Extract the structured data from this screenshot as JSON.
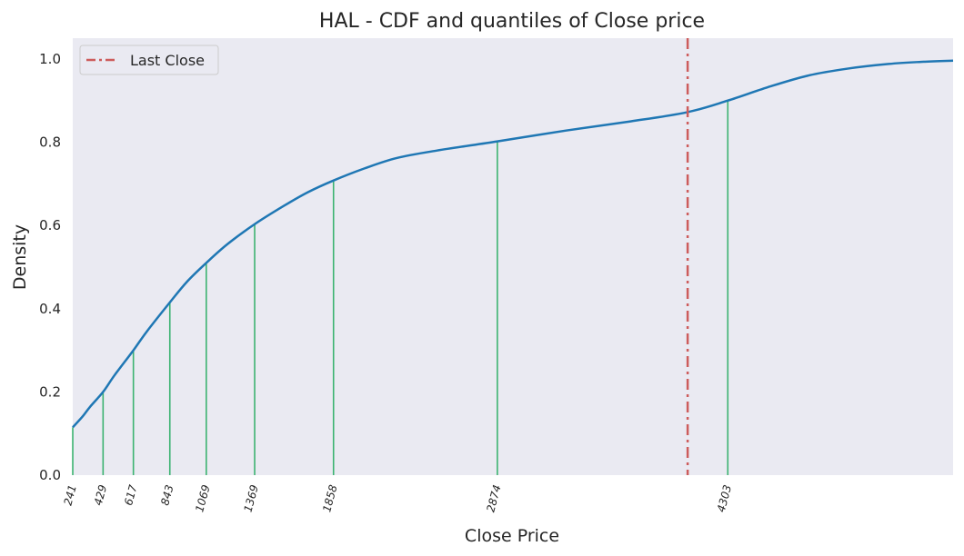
{
  "chart_data": {
    "type": "line",
    "title": "HAL - CDF and quantiles of Close price",
    "xlabel": "Close Price",
    "ylabel": "Density",
    "xlim": [
      241,
      5700
    ],
    "ylim": [
      0,
      1.05
    ],
    "yticks": [
      0.0,
      0.2,
      0.4,
      0.6,
      0.8,
      1.0
    ],
    "ytick_labels": [
      "0.0",
      "0.2",
      "0.4",
      "0.6",
      "0.8",
      "1.0"
    ],
    "grid": false,
    "legend_position": "top-left",
    "series": [
      {
        "name": "",
        "color": "#1f77b4",
        "x": [
          241,
          300,
          350,
          429,
          500,
          617,
          700,
          843,
          950,
          1069,
          1200,
          1369,
          1550,
          1700,
          1858,
          2050,
          2250,
          2500,
          2874,
          3300,
          3700,
          4050,
          4303,
          4550,
          4800,
          5050,
          5300,
          5500,
          5700
        ],
        "y": [
          0.115,
          0.14,
          0.165,
          0.2,
          0.24,
          0.3,
          0.345,
          0.415,
          0.465,
          0.51,
          0.555,
          0.603,
          0.647,
          0.68,
          0.708,
          0.737,
          0.762,
          0.78,
          0.802,
          0.828,
          0.85,
          0.872,
          0.9,
          0.932,
          0.96,
          0.977,
          0.988,
          0.993,
          0.996
        ]
      }
    ],
    "quantiles": {
      "name": "",
      "color": "#3cb371",
      "labels": [
        "241",
        "429",
        "617",
        "843",
        "1069",
        "1369",
        "1858",
        "2874",
        "4303"
      ],
      "x": [
        241,
        429,
        617,
        843,
        1069,
        1369,
        1858,
        2874,
        4303
      ],
      "y": [
        0.115,
        0.2,
        0.3,
        0.415,
        0.51,
        0.603,
        0.708,
        0.802,
        0.9
      ]
    },
    "last_close": {
      "name": "Last Close",
      "color": "#cd5c5c",
      "x": 4054
    }
  }
}
